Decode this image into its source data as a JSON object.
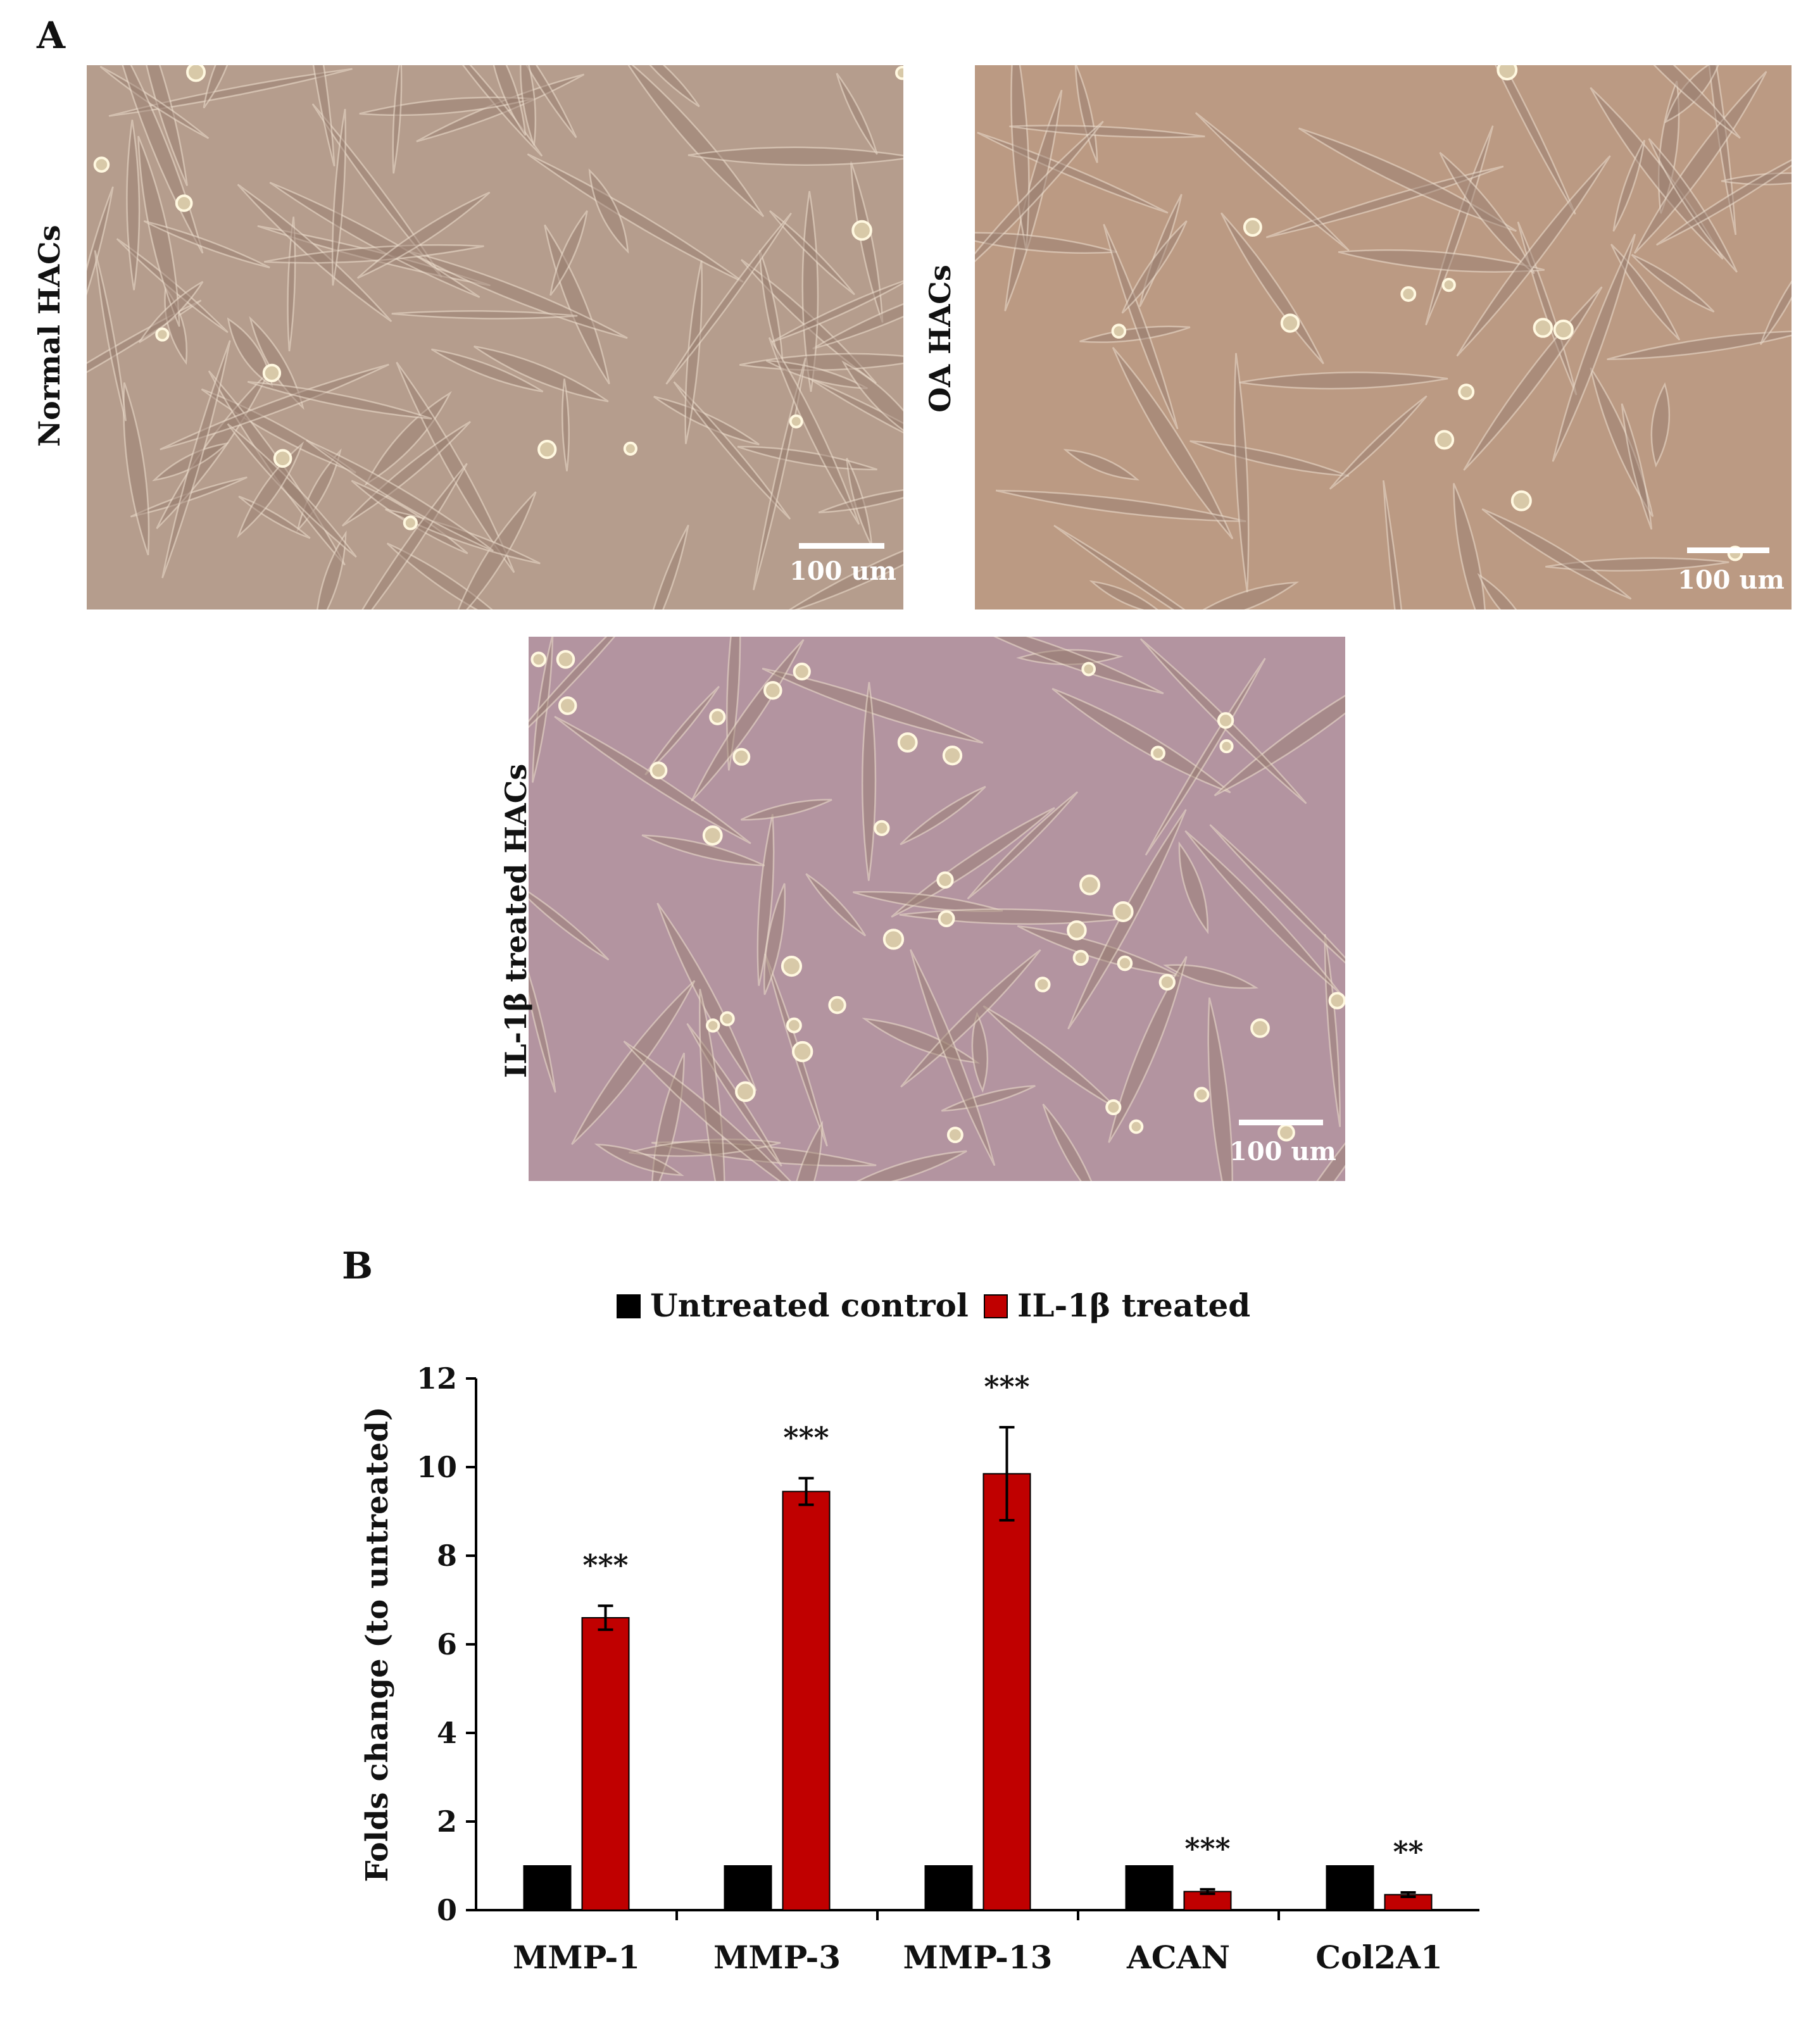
{
  "figure": {
    "panel_a_letter": "A",
    "panel_b_letter": "B",
    "micrographs": [
      {
        "label": "Normal HACs",
        "scale_label": "100 um",
        "tint": "#b59d8d"
      },
      {
        "label": "OA HACs",
        "scale_label": "100 um",
        "tint": "#bb9a83"
      },
      {
        "label": "IL-1β treated HACs",
        "scale_label": "100 um",
        "tint": "#b394a0"
      }
    ]
  },
  "chart_data": {
    "type": "bar",
    "categories": [
      "MMP-1",
      "MMP-3",
      "MMP-13",
      "ACAN",
      "Col2A1"
    ],
    "series": [
      {
        "name": "Untreated control",
        "color": "#000000",
        "values": [
          1,
          1,
          1,
          1,
          1
        ],
        "errors": [
          0,
          0,
          0,
          0,
          0
        ]
      },
      {
        "name": "IL-1β treated",
        "color": "#c00000",
        "values": [
          6.6,
          9.45,
          9.85,
          0.42,
          0.35
        ],
        "errors": [
          0.27,
          0.3,
          1.05,
          0.05,
          0.05
        ]
      }
    ],
    "significance": [
      "***",
      "***",
      "***",
      "***",
      "**"
    ],
    "ylabel": "Folds change (to untreated)",
    "ylim": [
      0,
      12
    ],
    "yticks": [
      0,
      2,
      4,
      6,
      8,
      10,
      12
    ],
    "legend_position": "top-center",
    "grid": false
  }
}
